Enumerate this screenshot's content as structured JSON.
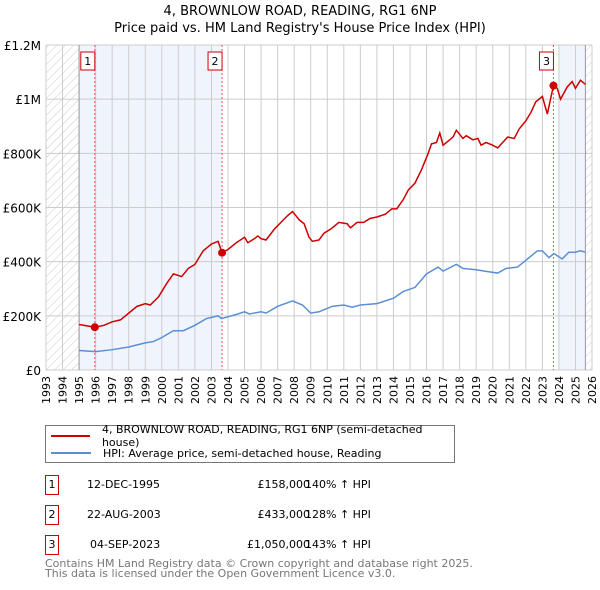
{
  "title": "4, BROWNLOW ROAD, READING, RG1 6NP",
  "subtitle": "Price paid vs. HM Land Registry's House Price Index (HPI)",
  "chart_data": {
    "type": "line",
    "xlim": [
      1993,
      2026
    ],
    "ylim": [
      0,
      1200000
    ],
    "x_ticks": [
      1993,
      1994,
      1995,
      1996,
      1997,
      1998,
      1999,
      2000,
      2001,
      2002,
      2003,
      2004,
      2005,
      2006,
      2007,
      2008,
      2009,
      2010,
      2011,
      2012,
      2013,
      2014,
      2015,
      2016,
      2017,
      2018,
      2019,
      2020,
      2021,
      2022,
      2023,
      2024,
      2025,
      2026
    ],
    "y_ticks": [
      {
        "v": 0,
        "l": "£0"
      },
      {
        "v": 200000,
        "l": "£200K"
      },
      {
        "v": 400000,
        "l": "£400K"
      },
      {
        "v": 600000,
        "l": "£600K"
      },
      {
        "v": 800000,
        "l": "£800K"
      },
      {
        "v": 1000000,
        "l": "£1M"
      },
      {
        "v": 1200000,
        "l": "£1.2M"
      }
    ],
    "series": [
      {
        "name": "4, BROWNLOW ROAD, READING, RG1 6NP (semi-detached house)",
        "color": "#cc0000",
        "points": [
          [
            1995,
            168000
          ],
          [
            1995.95,
            158000
          ],
          [
            1996.5,
            165000
          ],
          [
            1997,
            178000
          ],
          [
            1997.5,
            185000
          ],
          [
            1998,
            210000
          ],
          [
            1998.5,
            235000
          ],
          [
            1999,
            245000
          ],
          [
            1999.3,
            240000
          ],
          [
            1999.8,
            270000
          ],
          [
            2000.3,
            320000
          ],
          [
            2000.7,
            355000
          ],
          [
            2001.2,
            345000
          ],
          [
            2001.6,
            375000
          ],
          [
            2002,
            390000
          ],
          [
            2002.5,
            440000
          ],
          [
            2003,
            465000
          ],
          [
            2003.4,
            475000
          ],
          [
            2003.64,
            433000
          ],
          [
            2004,
            445000
          ],
          [
            2004.5,
            470000
          ],
          [
            2005,
            490000
          ],
          [
            2005.2,
            470000
          ],
          [
            2005.6,
            485000
          ],
          [
            2005.8,
            495000
          ],
          [
            2006,
            485000
          ],
          [
            2006.3,
            480000
          ],
          [
            2006.8,
            520000
          ],
          [
            2007.2,
            545000
          ],
          [
            2007.6,
            570000
          ],
          [
            2007.9,
            585000
          ],
          [
            2008.3,
            555000
          ],
          [
            2008.6,
            540000
          ],
          [
            2008.9,
            490000
          ],
          [
            2009.1,
            475000
          ],
          [
            2009.5,
            480000
          ],
          [
            2009.8,
            505000
          ],
          [
            2010.2,
            520000
          ],
          [
            2010.7,
            545000
          ],
          [
            2011.2,
            540000
          ],
          [
            2011.4,
            525000
          ],
          [
            2011.8,
            545000
          ],
          [
            2012.2,
            545000
          ],
          [
            2012.6,
            560000
          ],
          [
            2013,
            565000
          ],
          [
            2013.5,
            575000
          ],
          [
            2013.9,
            595000
          ],
          [
            2014.2,
            595000
          ],
          [
            2014.6,
            630000
          ],
          [
            2014.9,
            665000
          ],
          [
            2015.3,
            690000
          ],
          [
            2015.7,
            740000
          ],
          [
            2016.1,
            800000
          ],
          [
            2016.3,
            835000
          ],
          [
            2016.6,
            840000
          ],
          [
            2016.8,
            875000
          ],
          [
            2017,
            830000
          ],
          [
            2017.3,
            845000
          ],
          [
            2017.6,
            860000
          ],
          [
            2017.8,
            885000
          ],
          [
            2018.2,
            855000
          ],
          [
            2018.4,
            865000
          ],
          [
            2018.8,
            850000
          ],
          [
            2019.1,
            855000
          ],
          [
            2019.3,
            830000
          ],
          [
            2019.6,
            840000
          ],
          [
            2020,
            830000
          ],
          [
            2020.3,
            820000
          ],
          [
            2020.6,
            840000
          ],
          [
            2020.9,
            860000
          ],
          [
            2021.3,
            855000
          ],
          [
            2021.6,
            890000
          ],
          [
            2022,
            920000
          ],
          [
            2022.3,
            950000
          ],
          [
            2022.6,
            990000
          ],
          [
            2023,
            1010000
          ],
          [
            2023.3,
            945000
          ],
          [
            2023.67,
            1050000
          ],
          [
            2023.9,
            1040000
          ],
          [
            2024.1,
            1000000
          ],
          [
            2024.5,
            1045000
          ],
          [
            2024.8,
            1065000
          ],
          [
            2025,
            1040000
          ],
          [
            2025.3,
            1070000
          ],
          [
            2025.6,
            1055000
          ]
        ]
      },
      {
        "name": "HPI: Average price, semi-detached house, Reading",
        "color": "#5b8fd4",
        "points": [
          [
            1995,
            72000
          ],
          [
            1996,
            68000
          ],
          [
            1997,
            75000
          ],
          [
            1998,
            85000
          ],
          [
            1999,
            100000
          ],
          [
            1999.5,
            105000
          ],
          [
            2000,
            120000
          ],
          [
            2000.7,
            145000
          ],
          [
            2001.3,
            145000
          ],
          [
            2002,
            165000
          ],
          [
            2002.7,
            190000
          ],
          [
            2003.4,
            200000
          ],
          [
            2003.6,
            190000
          ],
          [
            2004.5,
            205000
          ],
          [
            2005,
            215000
          ],
          [
            2005.3,
            207000
          ],
          [
            2006,
            215000
          ],
          [
            2006.3,
            210000
          ],
          [
            2007,
            235000
          ],
          [
            2007.9,
            255000
          ],
          [
            2008.5,
            240000
          ],
          [
            2009,
            210000
          ],
          [
            2009.5,
            215000
          ],
          [
            2010.3,
            235000
          ],
          [
            2011,
            240000
          ],
          [
            2011.5,
            232000
          ],
          [
            2012,
            240000
          ],
          [
            2013,
            245000
          ],
          [
            2014,
            265000
          ],
          [
            2014.6,
            290000
          ],
          [
            2015.3,
            305000
          ],
          [
            2016,
            355000
          ],
          [
            2016.7,
            380000
          ],
          [
            2017,
            365000
          ],
          [
            2017.8,
            390000
          ],
          [
            2018.2,
            375000
          ],
          [
            2019,
            370000
          ],
          [
            2019.5,
            365000
          ],
          [
            2020.3,
            358000
          ],
          [
            2020.8,
            375000
          ],
          [
            2021.5,
            380000
          ],
          [
            2022,
            405000
          ],
          [
            2022.7,
            440000
          ],
          [
            2023,
            440000
          ],
          [
            2023.4,
            415000
          ],
          [
            2023.7,
            430000
          ],
          [
            2024.2,
            410000
          ],
          [
            2024.6,
            435000
          ],
          [
            2025,
            435000
          ],
          [
            2025.3,
            440000
          ],
          [
            2025.6,
            435000
          ]
        ]
      }
    ],
    "sales": [
      {
        "label": "1",
        "x": 1995.95,
        "y": 158000
      },
      {
        "label": "2",
        "x": 2003.64,
        "y": 433000
      },
      {
        "label": "3",
        "x": 2023.67,
        "y": 1050000
      }
    ]
  },
  "legend": {
    "property": "4, BROWNLOW ROAD, READING, RG1 6NP (semi-detached house)",
    "hpi": "HPI: Average price, semi-detached house, Reading"
  },
  "transactions": [
    {
      "num": "1",
      "date": "12-DEC-1995",
      "price": "£158,000",
      "hpi": "140% ↑ HPI"
    },
    {
      "num": "2",
      "date": "22-AUG-2003",
      "price": "£433,000",
      "hpi": "128% ↑ HPI"
    },
    {
      "num": "3",
      "date": "04-SEP-2023",
      "price": "£1,050,000",
      "hpi": "143% ↑ HPI"
    }
  ],
  "footer": {
    "line1": "Contains HM Land Registry data © Crown copyright and database right 2025.",
    "line2": "This data is licensed under the Open Government Licence v3.0."
  }
}
